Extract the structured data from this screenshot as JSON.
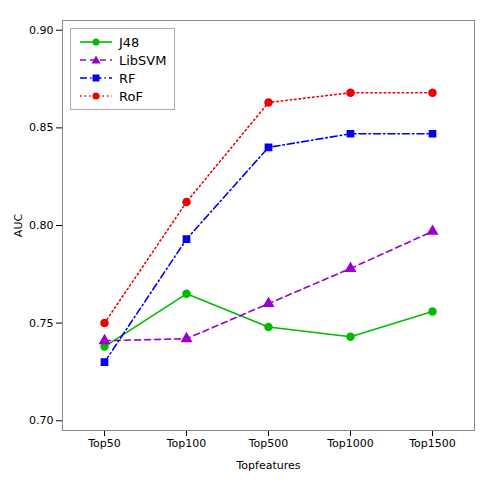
{
  "chart_data": {
    "type": "line",
    "categories": [
      "Top50",
      "Top100",
      "Top500",
      "Top1000",
      "Top1500"
    ],
    "series": [
      {
        "name": "J48",
        "color": "#00BB00",
        "marker": "circle",
        "line_style": "solid",
        "values": [
          0.738,
          0.765,
          0.748,
          0.743,
          0.756
        ]
      },
      {
        "name": "LibSVM",
        "color": "#9900CC",
        "marker": "triangle",
        "line_style": "dashed",
        "values": [
          0.741,
          0.742,
          0.76,
          0.778,
          0.797
        ]
      },
      {
        "name": "RF",
        "color": "#0000EE",
        "marker": "square",
        "line_style": "dashdot",
        "values": [
          0.73,
          0.793,
          0.84,
          0.847,
          0.847
        ]
      },
      {
        "name": "RoF",
        "color": "#EE0000",
        "marker": "circle",
        "line_style": "dotted",
        "values": [
          0.75,
          0.812,
          0.863,
          0.868,
          0.868
        ]
      }
    ],
    "xlabel": "Topfeatures",
    "ylabel": "AUC",
    "ylim": [
      0.695,
      0.905
    ],
    "yticks": [
      {
        "value": 0.7,
        "label": "0.70"
      },
      0.75,
      {
        "value": 0.8,
        "label": "0.80"
      },
      0.85,
      {
        "value": 0.9,
        "label": "0.90"
      }
    ],
    "grid": false,
    "legend": "upper left"
  }
}
